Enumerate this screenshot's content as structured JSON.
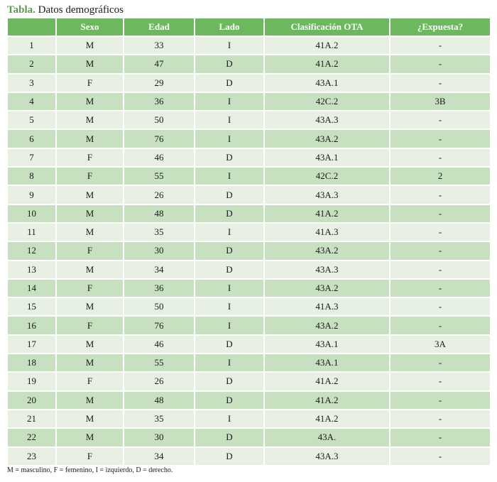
{
  "caption": {
    "lead": "Tabla.",
    "text": " Datos demográficos"
  },
  "columns": [
    "",
    "Sexo",
    "Edad",
    "Lado",
    "Clasificación OTA",
    "¿Expuesta?"
  ],
  "rows": [
    [
      "1",
      "M",
      "33",
      "I",
      "41A.2",
      "-"
    ],
    [
      "2",
      "M",
      "47",
      "D",
      "41A.2",
      "-"
    ],
    [
      "3",
      "F",
      "29",
      "D",
      "43A.1",
      "-"
    ],
    [
      "4",
      "M",
      "36",
      "I",
      "42C.2",
      "3B"
    ],
    [
      "5",
      "M",
      "50",
      "I",
      "43A.3",
      "-"
    ],
    [
      "6",
      "M",
      "76",
      "I",
      "43A.2",
      "-"
    ],
    [
      "7",
      "F",
      "46",
      "D",
      "43A.1",
      "-"
    ],
    [
      "8",
      "F",
      "55",
      "I",
      "42C.2",
      "2"
    ],
    [
      "9",
      "M",
      "26",
      "D",
      "43A.3",
      "-"
    ],
    [
      "10",
      "M",
      "48",
      "D",
      "41A.2",
      "-"
    ],
    [
      "11",
      "M",
      "35",
      "I",
      "41A.3",
      "-"
    ],
    [
      "12",
      "F",
      "30",
      "D",
      "43A.2",
      "-"
    ],
    [
      "13",
      "M",
      "34",
      "D",
      "43A.3",
      "-"
    ],
    [
      "14",
      "F",
      "36",
      "I",
      "43A.2",
      "-"
    ],
    [
      "15",
      "M",
      "50",
      "I",
      "41A.3",
      "-"
    ],
    [
      "16",
      "F",
      "76",
      "I",
      "43A.2",
      "-"
    ],
    [
      "17",
      "M",
      "46",
      "D",
      "43A.1",
      "3A"
    ],
    [
      "18",
      "M",
      "55",
      "I",
      "43A.1",
      "-"
    ],
    [
      "19",
      "F",
      "26",
      "D",
      "41A.2",
      "-"
    ],
    [
      "20",
      "M",
      "48",
      "D",
      "41A.2",
      "-"
    ],
    [
      "21",
      "M",
      "35",
      "I",
      "41A.2",
      "-"
    ],
    [
      "22",
      "M",
      "30",
      "D",
      "43A.",
      "-"
    ],
    [
      "23",
      "F",
      "34",
      "D",
      "43A.3",
      "-"
    ]
  ],
  "footnote": "M = masculino, F = femenino, I = izquierdo, D = derecho.",
  "colors": {
    "header_bg": "#6db85f",
    "row_light": "#e7f0e3",
    "row_dark": "#c7e0c0",
    "caption_accent": "#5a9a48"
  }
}
